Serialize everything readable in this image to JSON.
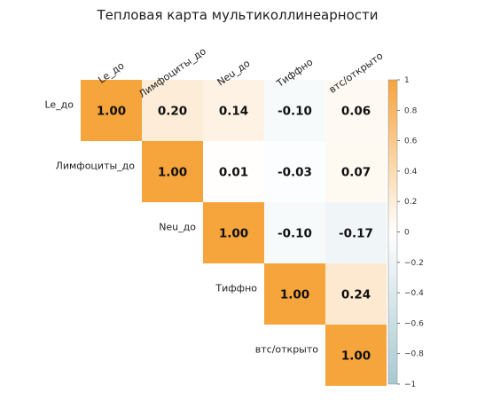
{
  "chart_data": {
    "type": "heatmap",
    "title": "Тепловая карта мультиколлинеарности",
    "variables": [
      "Le_до",
      "Лимфоциты_до",
      "Neu_до",
      "Тиффно",
      "втс/открыто"
    ],
    "matrix": [
      [
        1.0,
        0.2,
        0.14,
        -0.1,
        0.06
      ],
      [
        null,
        1.0,
        0.01,
        -0.03,
        0.07
      ],
      [
        null,
        null,
        1.0,
        -0.1,
        -0.17
      ],
      [
        null,
        null,
        null,
        1.0,
        0.24
      ],
      [
        null,
        null,
        null,
        null,
        1.0
      ]
    ],
    "value_labels": [
      [
        "1.00",
        "0.20",
        "0.14",
        "-0.10",
        "0.06"
      ],
      [
        null,
        "1.00",
        "0.01",
        "-0.03",
        "0.07"
      ],
      [
        null,
        null,
        "1.00",
        "-0.10",
        "-0.17"
      ],
      [
        null,
        null,
        null,
        "1.00",
        "0.24"
      ],
      [
        null,
        null,
        null,
        null,
        "1.00"
      ]
    ],
    "triangle": "upper",
    "colorbar": {
      "range": [
        -1,
        1
      ],
      "ticks": [
        "1",
        "0.8",
        "0.6",
        "0.4",
        "0.2",
        "0",
        "−0.2",
        "−0.4",
        "−0.6",
        "−0.8",
        "−1"
      ],
      "positive_color": "#f6a43c",
      "zero_color": "#ffffff",
      "negative_color": "#a7c8d3"
    },
    "legend": "right",
    "grid": false
  }
}
